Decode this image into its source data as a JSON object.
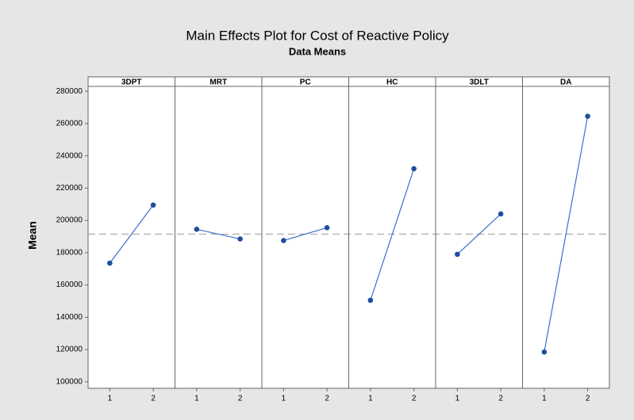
{
  "chart_data": {
    "type": "line",
    "title": "Main Effects Plot for Cost of Reactive Policy",
    "subtitle": "Data Means",
    "ylabel": "Mean",
    "x": [
      1,
      2
    ],
    "xlim": [
      0.5,
      2.5
    ],
    "xticks": [
      1,
      2
    ],
    "ylim": [
      96000,
      283000
    ],
    "yticks": [
      100000,
      120000,
      140000,
      160000,
      180000,
      200000,
      220000,
      240000,
      260000,
      280000
    ],
    "reference_line": 191500,
    "color": "#1f4e9c",
    "series": [
      {
        "name": "3DPT",
        "values": [
          173500,
          209500
        ]
      },
      {
        "name": "MRT",
        "values": [
          194500,
          188500
        ]
      },
      {
        "name": "PC",
        "values": [
          187500,
          195500
        ]
      },
      {
        "name": "HC",
        "values": [
          150500,
          232000
        ]
      },
      {
        "name": "3DLT",
        "values": [
          179000,
          204000
        ]
      },
      {
        "name": "DA",
        "values": [
          118500,
          264500
        ]
      }
    ]
  }
}
